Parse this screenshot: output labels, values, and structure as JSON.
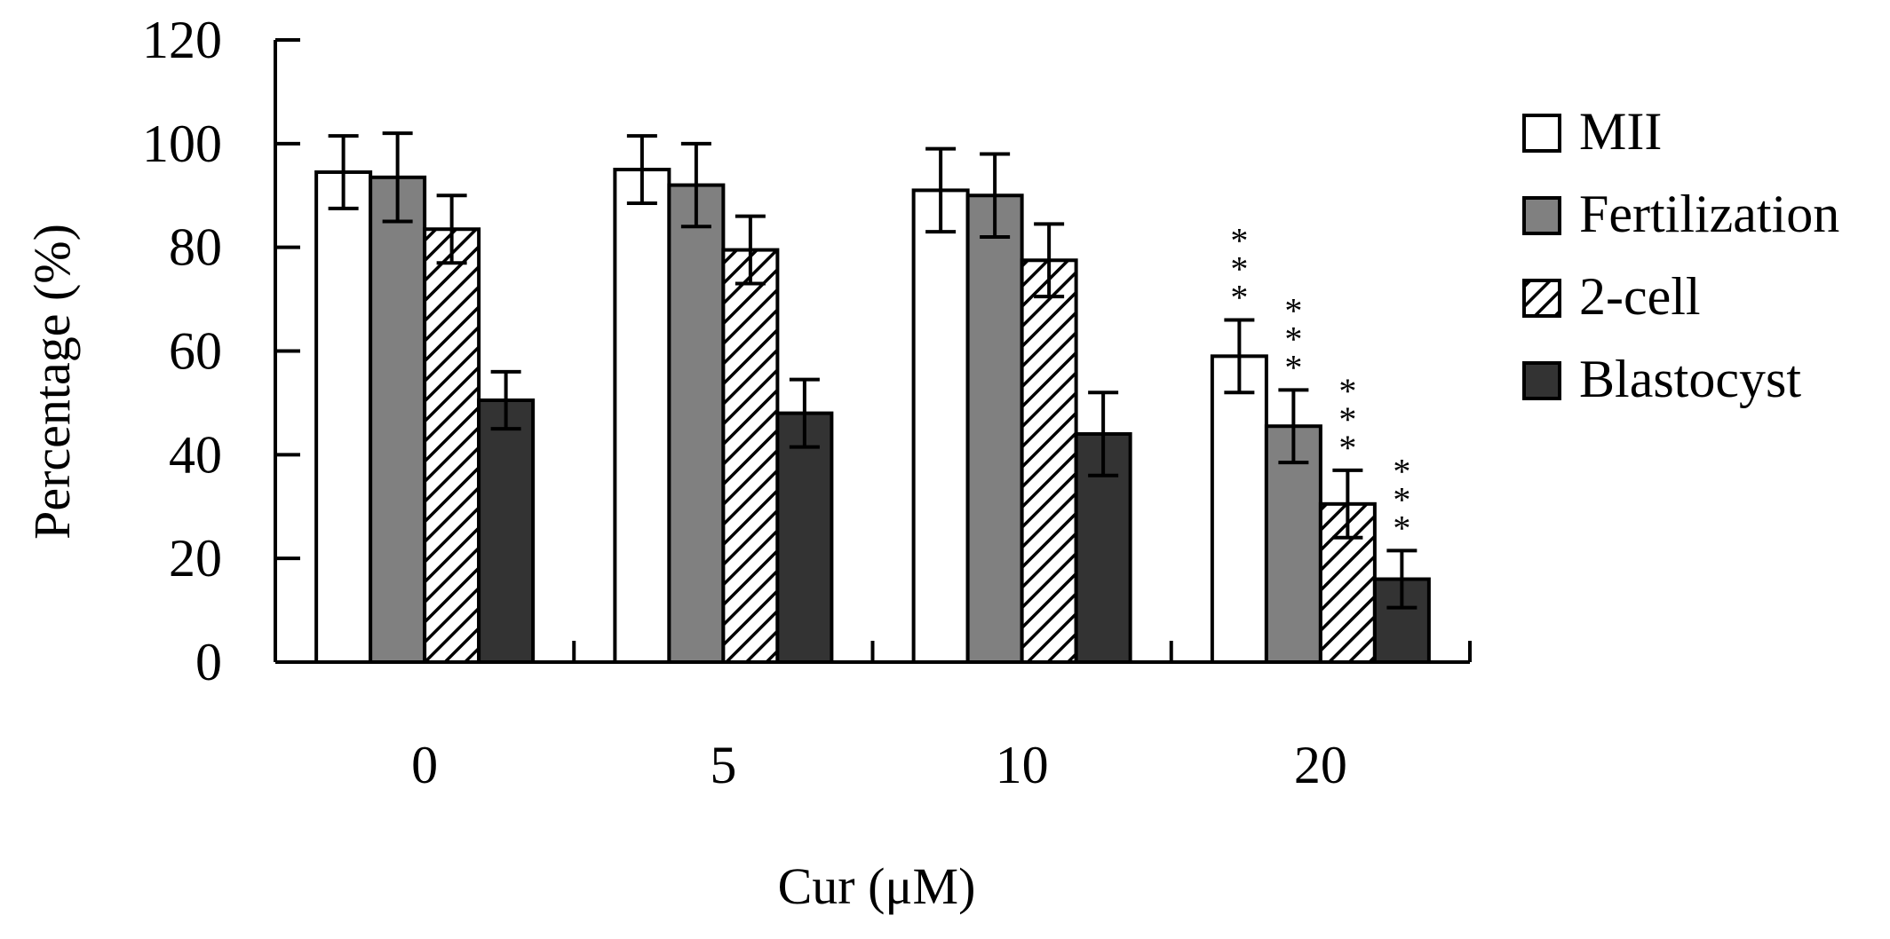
{
  "chart_data": {
    "type": "bar",
    "title": "",
    "xlabel": "Cur (μM)",
    "ylabel": "Percentage (%)",
    "ylim": [
      0,
      120
    ],
    "yticks": [
      "0",
      "20",
      "40",
      "60",
      "80",
      "100",
      "120"
    ],
    "ytick_values": [
      0,
      20,
      40,
      60,
      80,
      100,
      120
    ],
    "categories": [
      "0",
      "5",
      "10",
      "20"
    ],
    "legend_position": "right",
    "significance_marker": "***",
    "series": [
      {
        "name": "MII",
        "fill": "#ffffff",
        "pattern": "none",
        "values": [
          94.5,
          95,
          91,
          59
        ],
        "errors": [
          7,
          6.5,
          8,
          7
        ],
        "significance": [
          "",
          "",
          "",
          "***"
        ]
      },
      {
        "name": "Fertilization",
        "fill": "#808080",
        "pattern": "none",
        "values": [
          93.5,
          92,
          90,
          45.5
        ],
        "errors": [
          8.5,
          8,
          8,
          7
        ],
        "significance": [
          "",
          "",
          "",
          "***"
        ]
      },
      {
        "name": "2-cell",
        "fill": "#ffffff",
        "pattern": "diagonal-hatch",
        "values": [
          83.5,
          79.5,
          77.5,
          30.5
        ],
        "errors": [
          6.5,
          6.5,
          7,
          6.5
        ],
        "significance": [
          "",
          "",
          "",
          "***"
        ]
      },
      {
        "name": "Blastocyst",
        "fill": "#333333",
        "pattern": "none",
        "values": [
          50.5,
          48,
          44,
          16
        ],
        "errors": [
          5.5,
          6.5,
          8,
          5.5
        ],
        "significance": [
          "",
          "",
          "",
          "***"
        ]
      }
    ]
  }
}
